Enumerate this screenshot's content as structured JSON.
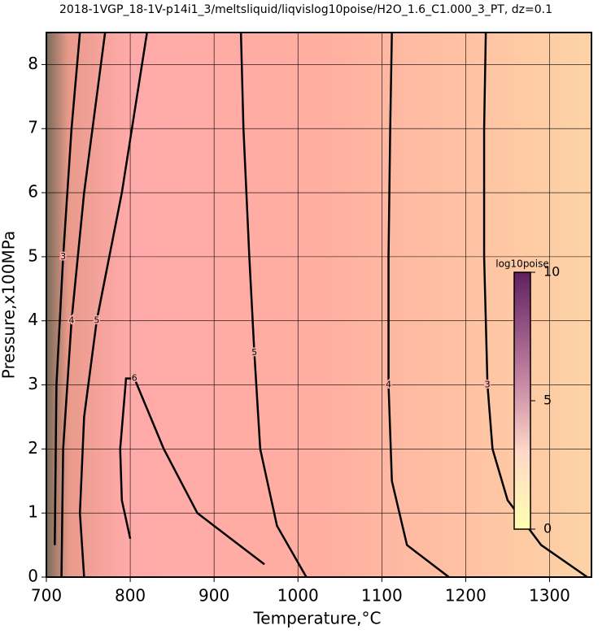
{
  "chart_data": {
    "type": "contour",
    "title": "2018-1VGP_18-1V-p14i1_3/meltsliquid/liqvislog10poise/H2O_1.6_C1.000_3_PT, dz=0.1",
    "x_label": "Temperature,°C",
    "y_label": "Pressure,x100MPa",
    "xlim": [
      700,
      1350
    ],
    "ylim": [
      0,
      8.5
    ],
    "xticks": [
      700,
      800,
      900,
      1000,
      1100,
      1200,
      1300
    ],
    "yticks": [
      0,
      1,
      2,
      3,
      4,
      5,
      6,
      7,
      8
    ],
    "grid": true,
    "contours": [
      {
        "level": 3,
        "x": [
          1345,
          1290,
          1250,
          1232,
          1226,
          1222,
          1222,
          1224
        ],
        "y": [
          0,
          0.5,
          1.2,
          2,
          3,
          5,
          7,
          8.5
        ]
      },
      {
        "level": 4,
        "x": [
          1180,
          1130,
          1112,
          1108,
          1108,
          1110,
          1112
        ],
        "y": [
          0,
          0.5,
          1.5,
          3,
          5,
          7,
          8.5
        ]
      },
      {
        "level": 5,
        "x": [
          1010,
          975,
          955,
          948,
          942,
          935,
          932
        ],
        "y": [
          0,
          0.8,
          2,
          3.5,
          5,
          7,
          8.5
        ]
      },
      {
        "level": 6,
        "x": [
          800,
          790,
          788,
          795,
          805,
          840,
          880,
          920,
          960
        ],
        "y": [
          0.6,
          1.2,
          2,
          3.1,
          3.1,
          2,
          1,
          0.6,
          0.2
        ]
      },
      {
        "level": 5,
        "x": [
          745,
          740,
          745,
          760,
          790,
          820
        ],
        "y": [
          0,
          1,
          2.5,
          4,
          6,
          8.5
        ]
      },
      {
        "level": 4,
        "x": [
          718,
          720,
          730,
          745,
          770
        ],
        "y": [
          0,
          2,
          4,
          6,
          8.5
        ]
      },
      {
        "level": 3,
        "x": [
          710,
          712,
          720,
          730,
          740
        ],
        "y": [
          0.5,
          3,
          5,
          7,
          8.5
        ]
      }
    ],
    "colorbar": {
      "label": "log10poise",
      "lim": [
        0,
        10
      ],
      "ticks": [
        0,
        5,
        10
      ]
    }
  }
}
